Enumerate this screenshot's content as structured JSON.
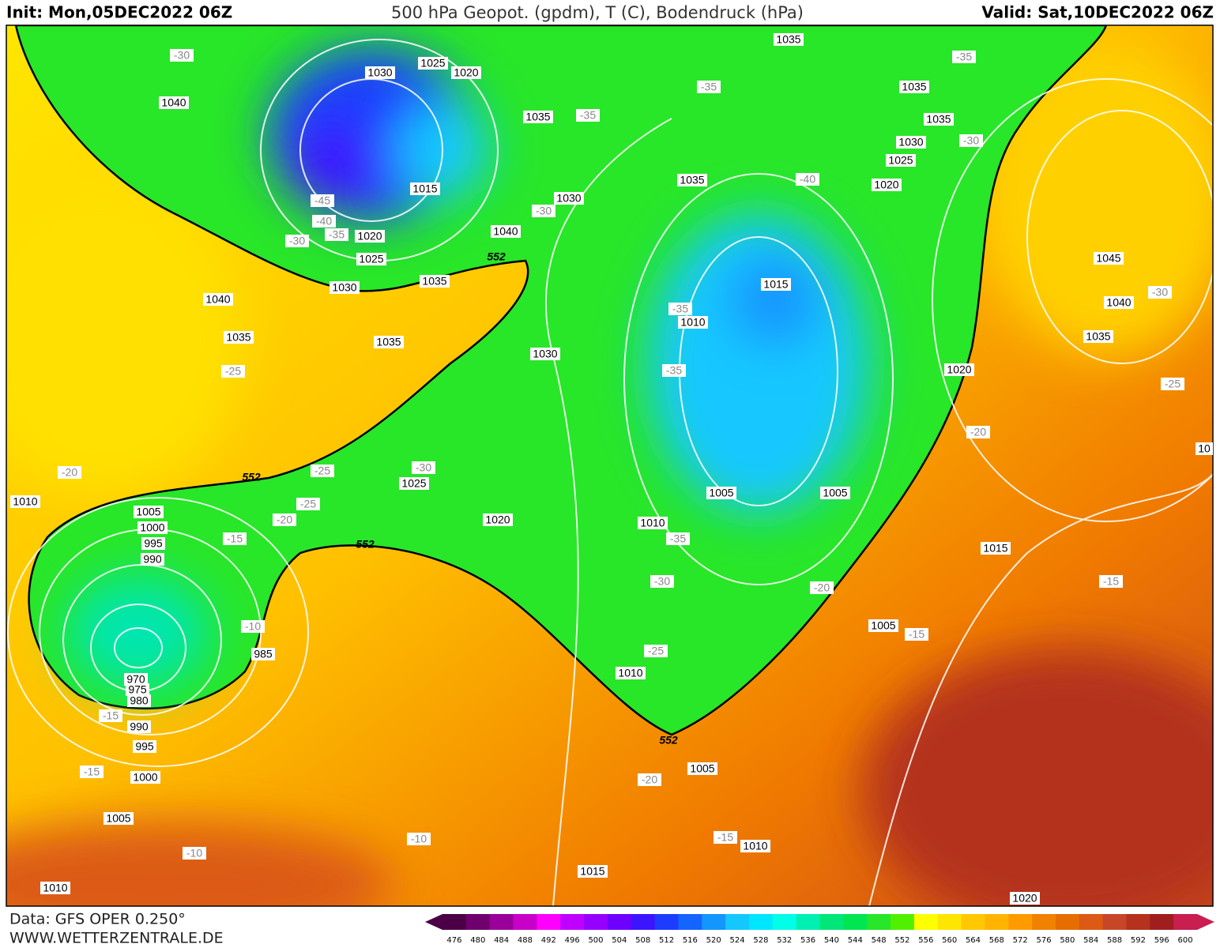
{
  "header": {
    "init": "Init: Mon,05DEC2022 06Z",
    "title": "500 hPa Geopot. (gpdm), T (C), Bodendruck (hPa)",
    "valid": "Valid: Sat,10DEC2022 06Z"
  },
  "footer": {
    "data": "Data: GFS OPER 0.250°",
    "site": "WWW.WETTERZENTRALE.DE"
  },
  "map": {
    "pressure_labels": [
      1035,
      1025,
      1020,
      1030,
      1040,
      1035,
      1035,
      1035,
      1030,
      1025,
      1020,
      1035,
      1015,
      1030,
      1040,
      1020,
      1025,
      1035,
      1030,
      1040,
      1035,
      1035,
      1030,
      1015,
      1010,
      1045,
      1040,
      1035,
      1020,
      1010,
      1025,
      1020,
      1005,
      1005,
      1010,
      1005,
      1000,
      995,
      990,
      985,
      1015,
      1005,
      1010,
      970,
      975,
      980,
      990,
      995,
      1000,
      1005,
      1005,
      1010,
      1015,
      1010,
      1020,
      10
    ],
    "temperature_labels": [
      -30,
      -35,
      -35,
      -35,
      -30,
      -40,
      -45,
      -40,
      -35,
      -30,
      -30,
      -35,
      -35,
      -30,
      -25,
      -25,
      -20,
      -20,
      -25,
      -30,
      -25,
      -20,
      -15,
      -35,
      -30,
      -20,
      -15,
      -10,
      -15,
      -25,
      -15,
      -15,
      -20,
      -15,
      -10,
      -10
    ],
    "height_labels": [
      552,
      552,
      552,
      552
    ]
  },
  "colorbar": {
    "values": [
      476,
      480,
      484,
      488,
      492,
      496,
      500,
      504,
      508,
      512,
      516,
      520,
      524,
      528,
      532,
      536,
      540,
      544,
      548,
      552,
      556,
      560,
      564,
      568,
      572,
      576,
      580,
      584,
      588,
      592,
      596,
      600
    ],
    "colors": [
      "#4b0046",
      "#6e006e",
      "#9a009a",
      "#c800c8",
      "#ff00ff",
      "#c000ff",
      "#9600ff",
      "#6e00ff",
      "#3c14ff",
      "#1e3cff",
      "#1464ff",
      "#1496ff",
      "#14c8ff",
      "#00e6ff",
      "#00ffe6",
      "#00f0b4",
      "#00e678",
      "#00e650",
      "#28e628",
      "#50f000",
      "#ffff00",
      "#ffe600",
      "#ffc800",
      "#ffb400",
      "#ff9b00",
      "#f08200",
      "#e66e00",
      "#dc5a14",
      "#c84628",
      "#b4321e",
      "#a01e1e",
      "#c81e50"
    ]
  }
}
